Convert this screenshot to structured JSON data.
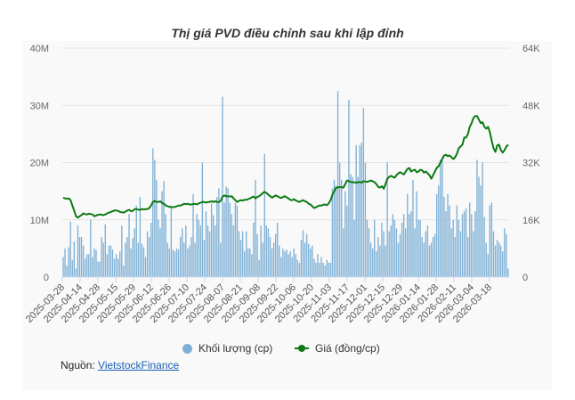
{
  "chart_data": {
    "type": "bar+line",
    "title": "Thị giá PVD điều chỉnh sau khi lập đỉnh",
    "x_tick_labels": [
      "2025-03-28",
      "2025-04-14",
      "2025-04-28",
      "2025-05-15",
      "2025-05-29",
      "2025-06-12",
      "2025-06-26",
      "2025-07-10",
      "2025-07-24",
      "2025-08-07",
      "2025-08-21",
      "2025-09-08",
      "2025-09-22",
      "2025-10-06",
      "2025-10-20",
      "2025-11-03",
      "2025-11-17",
      "2025-12-01",
      "2025-12-15",
      "2025-12-29",
      "2026-01-14",
      "2026-01-28",
      "2026-02-11",
      "2026-03-04",
      "2026-03-18"
    ],
    "left_axis": {
      "ticks": [
        "0",
        "10M",
        "20M",
        "30M",
        "40M"
      ],
      "range": [
        0,
        40000000
      ]
    },
    "right_axis": {
      "ticks": [
        "0",
        "16K",
        "32K",
        "48K",
        "64K"
      ],
      "range": [
        0,
        64000
      ]
    },
    "grid": true,
    "legend_position": "bottom",
    "series": [
      {
        "name": "Khối lượng (cp)",
        "type": "bar",
        "unit": "million shares",
        "color": "#7eb0d5",
        "values": [
          3.5,
          5,
          2,
          5.2,
          9.7,
          3,
          6.2,
          1.5,
          9,
          7,
          7,
          5.5,
          3.2,
          4,
          4,
          10,
          3.5,
          5,
          4.7,
          2.7,
          2.7,
          7,
          6,
          9.2,
          4,
          5.5,
          5.5,
          4.8,
          3.2,
          4,
          3.2,
          4.5,
          9,
          2,
          6,
          7,
          11,
          5,
          6.8,
          8.5,
          12.5,
          6,
          14,
          5.8,
          5.2,
          3.5,
          8,
          7,
          9.5,
          22.5,
          20.5,
          17,
          10,
          8.5,
          15,
          16.8,
          11,
          6,
          5,
          12.5,
          4.8,
          4.5,
          5,
          4.8,
          7,
          8.5,
          6,
          9,
          5,
          5.5,
          7,
          14.5,
          6,
          11,
          10,
          9,
          20,
          6.5,
          11.5,
          9,
          8,
          12.8,
          10.8,
          9,
          14,
          15.5,
          6,
          31.5,
          13,
          15.8,
          15.5,
          13,
          11,
          9,
          13,
          12.5,
          8,
          6.5,
          8,
          4.5,
          8,
          5,
          5,
          4,
          9.5,
          17,
          7.5,
          3,
          9,
          6,
          21.5,
          9,
          8.5,
          7,
          5,
          6,
          7.5,
          9.5,
          5.5,
          3.5,
          5,
          4.5,
          4.8,
          4,
          4.5,
          3.5,
          5,
          4,
          3,
          2.5,
          6.5,
          8.2,
          6,
          7.5,
          5.8,
          5,
          5.5,
          3.2,
          2.5,
          4,
          2.5,
          3.5,
          2.5,
          2,
          3,
          2.5,
          2.5,
          15.5,
          17,
          16,
          32.5,
          20,
          17,
          8.5,
          15,
          12.5,
          31,
          18,
          17.5,
          10,
          23,
          17.5,
          23,
          23.5,
          29.5,
          20,
          10,
          8.5,
          6,
          5,
          10,
          4.5,
          7,
          5.5,
          9.5,
          8,
          5.5,
          20,
          8,
          9,
          11,
          10,
          8.5,
          6,
          7.5,
          9.5,
          11,
          8.5,
          14.5,
          11,
          11.5,
          17,
          8.5,
          15,
          10,
          10,
          7,
          6,
          8,
          9,
          5.5,
          6,
          7,
          7.5,
          14.5,
          16,
          20.5,
          21,
          14,
          11.5,
          14.5,
          12.5,
          8.5,
          10,
          7,
          12.5,
          10,
          8,
          11,
          11.5,
          12,
          7,
          13,
          11,
          8,
          11.5,
          20.5,
          17.5,
          16,
          20,
          10.5,
          6,
          4,
          12.5,
          13,
          8,
          5.5,
          6.5,
          6,
          5.5,
          4.5,
          8.5,
          7.5,
          1.5
        ]
      },
      {
        "name": "Giá (đồng/cp)",
        "type": "line",
        "unit": "thousand VND",
        "color": "#0b7a12",
        "values": [
          22.2,
          22,
          21.9,
          22,
          21.5,
          20,
          18.5,
          17,
          16.6,
          17,
          17.3,
          17.8,
          17.6,
          17.5,
          17.7,
          17.6,
          17.5,
          17,
          17.2,
          17.4,
          17.5,
          17.4,
          17.3,
          17.5,
          17.8,
          18,
          18.2,
          18.4,
          18.6,
          18.6,
          18.5,
          18.2,
          18.1,
          18,
          18.3,
          18.6,
          18.8,
          18.4,
          18.5,
          19,
          19,
          18.8,
          18.8,
          19,
          18.9,
          19,
          19,
          19.3,
          20,
          21,
          21.3,
          21,
          21,
          21.2,
          20.7,
          20.5,
          20,
          19.8,
          19.6,
          19.6,
          19.5,
          19.6,
          19.8,
          20,
          20,
          20.2,
          20.5,
          20.4,
          20.5,
          20.3,
          20.3,
          20.4,
          20.5,
          20.3,
          20.6,
          20.8,
          21,
          21,
          20.8,
          21,
          21,
          21.2,
          21,
          21.2,
          21,
          21,
          21.3,
          22.5,
          22.8,
          22.6,
          22.6,
          22.5,
          22.6,
          22,
          21.5,
          21,
          21.3,
          21.5,
          21.4,
          21.6,
          21.6,
          21.8,
          22,
          22.3,
          22.5,
          22,
          22.4,
          22.6,
          23,
          23.5,
          23.8,
          23.5,
          23,
          22.6,
          22.2,
          22.5,
          22.8,
          22.6,
          22.3,
          22.1,
          22.4,
          22.6,
          22.3,
          22,
          21.6,
          21.5,
          21.8,
          21.4,
          21.2,
          21,
          21.3,
          21.5,
          21.2,
          21,
          20.5,
          20.3,
          19.8,
          19.3,
          19.5,
          19.8,
          20,
          20,
          20.2,
          20.3,
          20.1,
          20.6,
          21.5,
          23,
          24,
          25,
          25,
          25.2,
          25.1,
          25,
          26,
          27,
          26.8,
          26.6,
          26.5,
          26.5,
          26.4,
          26.5,
          26.6,
          26.4,
          26.8,
          26.7,
          26.6,
          26.8,
          27,
          26.8,
          26.5,
          26,
          25.2,
          25,
          25.4,
          24.7,
          26,
          27.5,
          28,
          28.3,
          28,
          27.8,
          28.5,
          29,
          29.3,
          29,
          28.7,
          29.5,
          30.2,
          30.5,
          29.5,
          29.8,
          30,
          29.3,
          29.5,
          30,
          29.8,
          29.2,
          29.5,
          29,
          28.5,
          27.5,
          28.5,
          29.5,
          30.5,
          31,
          32,
          33,
          34,
          34.2,
          33.8,
          34,
          33.5,
          33,
          33.5,
          34.5,
          36,
          36.5,
          37,
          39,
          39,
          40,
          42,
          43,
          44.5,
          45,
          45,
          44,
          43,
          43.3,
          42,
          41.5,
          42,
          40.5,
          38,
          36,
          35,
          36.8,
          37,
          35.5,
          34.8,
          35.5,
          36.5,
          37
        ]
      }
    ]
  },
  "legend": {
    "volume_label": "Khối lượng (cp)",
    "price_label": "Giá (đồng/cp)"
  },
  "source": {
    "prefix": "Nguồn:",
    "link_text": "VietstockFinance"
  }
}
